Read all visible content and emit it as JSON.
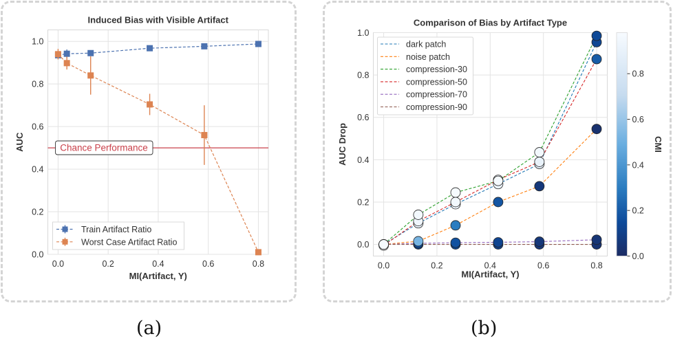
{
  "captions": {
    "a": "(a)",
    "b": "(b)"
  },
  "chart_data": [
    {
      "type": "line",
      "title": "Induced Bias with Visible Artifact",
      "xlabel": "MI(Artifact, Y)",
      "ylabel": "AUC",
      "xlim": [
        -0.041,
        0.84
      ],
      "ylim": [
        0.0,
        1.054
      ],
      "xticks": [
        0.0,
        0.2,
        0.4,
        0.6,
        0.8
      ],
      "xtick_labels": [
        "0.0",
        "0.2",
        "0.4",
        "0.6",
        "0.8"
      ],
      "yticks": [
        0.0,
        0.2,
        0.4,
        0.6,
        0.8,
        1.0
      ],
      "ytick_labels": [
        "0.0",
        "0.2",
        "0.4",
        "0.6",
        "0.8",
        "1.0"
      ],
      "grid": true,
      "legend_position": "bottom-left",
      "hline": {
        "y": 0.5,
        "label": "Chance Performance",
        "color": "#c9404a"
      },
      "series": [
        {
          "name": "Train Artifact Ratio",
          "color": "#4c72b0",
          "x": [
            0.0,
            0.035,
            0.13,
            0.366,
            0.584,
            0.8
          ],
          "y": [
            0.935,
            0.942,
            0.945,
            0.968,
            0.977,
            0.988
          ],
          "err": [
            0.01,
            0.02,
            0.008,
            0.006,
            0.006,
            0.004
          ]
        },
        {
          "name": "Worst Case Artifact Ratio",
          "color": "#dd8452",
          "x": [
            0.0,
            0.035,
            0.13,
            0.366,
            0.584,
            0.8
          ],
          "y": [
            0.94,
            0.898,
            0.84,
            0.704,
            0.56,
            0.01
          ],
          "err": [
            0.025,
            0.03,
            0.09,
            0.05,
            0.14,
            0.005
          ]
        }
      ]
    },
    {
      "type": "scatter",
      "title": "Comparison of Bias by Artifact Type",
      "xlabel": "MI(Artifact, Y)",
      "ylabel": "AUC Drop",
      "xlim": [
        -0.039,
        0.84
      ],
      "ylim": [
        -0.055,
        1.0
      ],
      "xticks": [
        0.0,
        0.2,
        0.4,
        0.6,
        0.8
      ],
      "xtick_labels": [
        "0.0",
        "0.2",
        "0.4",
        "0.6",
        "0.8"
      ],
      "yticks": [
        0.0,
        0.2,
        0.4,
        0.6,
        0.8,
        1.0
      ],
      "ytick_labels": [
        "0.0",
        "0.2",
        "0.4",
        "0.6",
        "0.8",
        "1.0"
      ],
      "grid": true,
      "legend_position": "top-left",
      "colorbar": {
        "label": "CMI",
        "range": [
          0.0,
          0.98
        ],
        "ticks": [
          0.0,
          0.2,
          0.4,
          0.6,
          0.8
        ],
        "tick_labels": [
          "0.0",
          "0.2",
          "0.4",
          "0.6",
          "0.8"
        ]
      },
      "x": [
        0.0,
        0.13,
        0.27,
        0.43,
        0.585,
        0.8
      ],
      "series": [
        {
          "name": "dark patch",
          "color": "#1f77b4",
          "y": [
            0.0,
            0.1,
            0.19,
            0.285,
            0.38,
            0.955
          ],
          "cmi": [
            0.95,
            0.92,
            0.93,
            0.92,
            0.88,
            0.13
          ]
        },
        {
          "name": "noise patch",
          "color": "#ff7f0e",
          "y": [
            0.0,
            0.015,
            0.09,
            0.2,
            0.275,
            0.545
          ],
          "cmi": [
            0.95,
            0.52,
            0.3,
            0.18,
            0.06,
            0.03
          ]
        },
        {
          "name": "compression-30",
          "color": "#2ca02c",
          "y": [
            0.0,
            0.14,
            0.245,
            0.3,
            0.435,
            0.985
          ],
          "cmi": [
            0.97,
            0.96,
            0.97,
            0.97,
            0.95,
            0.14
          ]
        },
        {
          "name": "compression-50",
          "color": "#d62728",
          "y": [
            -0.005,
            0.11,
            0.2,
            0.305,
            0.39,
            0.875
          ],
          "cmi": [
            0.98,
            0.94,
            0.95,
            0.94,
            0.9,
            0.2
          ]
        },
        {
          "name": "compression-70",
          "color": "#9467bd",
          "y": [
            0.0,
            0.005,
            0.008,
            0.01,
            0.013,
            0.022
          ],
          "cmi": [
            0.05,
            0.15,
            0.17,
            0.12,
            0.06,
            0.05
          ]
        },
        {
          "name": "compression-90",
          "color": "#8c564b",
          "y": [
            0.0,
            0.0,
            0.0,
            0.0,
            0.0,
            0.0
          ],
          "cmi": [
            0.02,
            0.12,
            0.15,
            0.1,
            0.05,
            0.04
          ]
        }
      ]
    }
  ]
}
